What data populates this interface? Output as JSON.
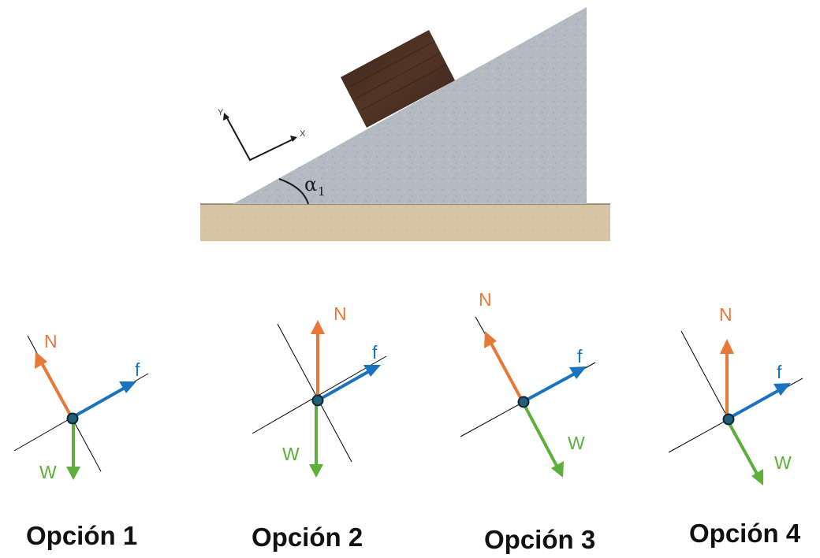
{
  "colors": {
    "normal": "#E8773A",
    "friction": "#1A73BE",
    "weight": "#5DAF3A",
    "incline": "#B4BAC2",
    "ground": "#D7C4A5",
    "block": "#4A3022",
    "point": "#1F5F78"
  },
  "scene": {
    "axis_y_label": "Y",
    "axis_x_label": "X",
    "angle_symbol": "α",
    "angle_subscript": "1"
  },
  "options": [
    {
      "label": "Opción 1",
      "n_label": "N",
      "f_label": "f",
      "w_label": "W"
    },
    {
      "label": "Opción 2",
      "n_label": "N",
      "f_label": "f",
      "w_label": "W"
    },
    {
      "label": "Opción 3",
      "n_label": "N",
      "f_label": "f",
      "w_label": "W"
    },
    {
      "label": "Opción 4",
      "n_label": "N",
      "f_label": "f",
      "w_label": "W"
    }
  ]
}
